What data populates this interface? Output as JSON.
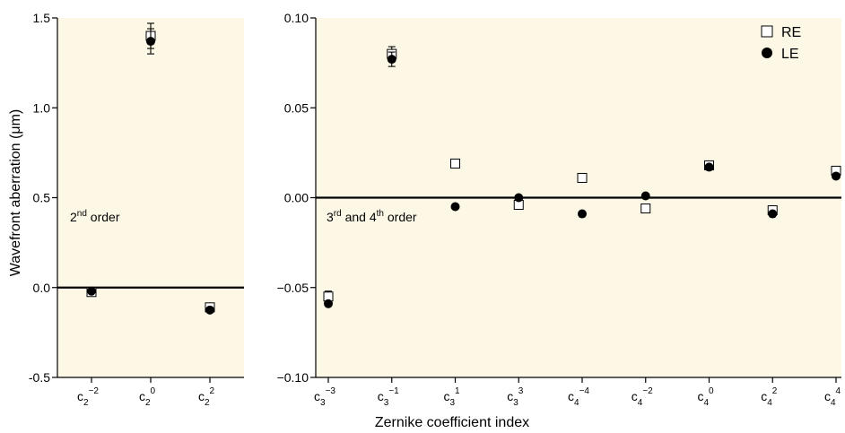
{
  "figure": {
    "ylabel": "Wavefront aberration (μm)",
    "xlabel": "Zernike coefficient index"
  },
  "legend": [
    {
      "label": "RE",
      "marker": "open-square"
    },
    {
      "label": "LE",
      "marker": "filled-circle"
    }
  ],
  "colors": {
    "panel_background": "#fdf8e6",
    "axes": "#000000",
    "marker_fill": "#000000",
    "open_marker_fill": "#ffffff"
  },
  "chart_data": [
    {
      "type": "scatter",
      "panel": "2nd order",
      "annotation": {
        "base": "2",
        "sup": "nd",
        "rest": " order"
      },
      "ylim": [
        -0.5,
        1.5
      ],
      "yticks": [
        "-0.5",
        "0.0",
        "0.5",
        "1.0",
        "1.5"
      ],
      "categories": [
        {
          "base": "c",
          "sub": "2",
          "sup": "−2"
        },
        {
          "base": "c",
          "sub": "2",
          "sup": "0"
        },
        {
          "base": "c",
          "sub": "2",
          "sup": "2"
        }
      ],
      "grid": false,
      "zero_line": true,
      "series": [
        {
          "name": "RE",
          "values": [
            -0.025,
            1.4,
            -0.11
          ],
          "error": [
            0.0,
            0.07,
            0.0
          ]
        },
        {
          "name": "LE",
          "values": [
            -0.02,
            1.37,
            -0.125
          ],
          "error": [
            0.0,
            0.07,
            0.0
          ]
        }
      ]
    },
    {
      "type": "scatter",
      "panel": "3rd and 4th order",
      "annotation": {
        "base": "3",
        "sup": "rd",
        "mid": " and 4",
        "sup2": "th",
        "rest": " order"
      },
      "ylim": [
        -0.1,
        0.1
      ],
      "yticks": [
        "−0.10",
        "−0.05",
        "0.00",
        "0.05",
        "0.10"
      ],
      "categories": [
        {
          "base": "c",
          "sub": "3",
          "sup": "−3"
        },
        {
          "base": "c",
          "sub": "3",
          "sup": "−1"
        },
        {
          "base": "c",
          "sub": "3",
          "sup": "1"
        },
        {
          "base": "c",
          "sub": "3",
          "sup": "3"
        },
        {
          "base": "c",
          "sub": "4",
          "sup": "−4"
        },
        {
          "base": "c",
          "sub": "4",
          "sup": "−2"
        },
        {
          "base": "c",
          "sub": "4",
          "sup": "0"
        },
        {
          "base": "c",
          "sub": "4",
          "sup": "2"
        },
        {
          "base": "c",
          "sub": "4",
          "sup": "4"
        }
      ],
      "grid": false,
      "zero_line": true,
      "series": [
        {
          "name": "RE",
          "values": [
            -0.055,
            0.08,
            0.019,
            -0.004,
            0.011,
            -0.006,
            0.018,
            -0.007,
            0.015
          ],
          "error": [
            0.003,
            0.004,
            0.0,
            0.0,
            0.0,
            0.0,
            0.0,
            0.0,
            0.0
          ]
        },
        {
          "name": "LE",
          "values": [
            -0.059,
            0.077,
            -0.005,
            0.0,
            -0.009,
            0.001,
            0.017,
            -0.009,
            0.012
          ],
          "error": [
            0.0,
            0.004,
            0.0,
            0.0,
            0.0,
            0.0,
            0.0,
            0.0,
            0.0
          ]
        }
      ]
    }
  ]
}
